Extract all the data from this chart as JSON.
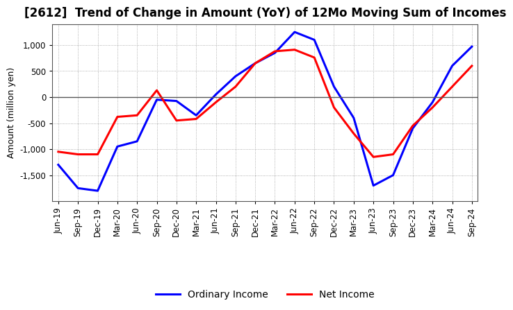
{
  "title": "[2612]  Trend of Change in Amount (YoY) of 12Mo Moving Sum of Incomes",
  "ylabel": "Amount (million yen)",
  "x_labels": [
    "Jun-19",
    "Sep-19",
    "Dec-19",
    "Mar-20",
    "Jun-20",
    "Sep-20",
    "Dec-20",
    "Mar-21",
    "Jun-21",
    "Sep-21",
    "Dec-21",
    "Mar-22",
    "Jun-22",
    "Sep-22",
    "Dec-22",
    "Mar-23",
    "Jun-23",
    "Sep-23",
    "Dec-23",
    "Mar-24",
    "Jun-24",
    "Sep-24"
  ],
  "ordinary_income": [
    -1300,
    -1750,
    -1800,
    -950,
    -850,
    -50,
    -75,
    -350,
    50,
    400,
    650,
    850,
    1250,
    1100,
    200,
    -400,
    -1700,
    -1500,
    -600,
    -100,
    600,
    970
  ],
  "net_income": [
    -1050,
    -1100,
    -1100,
    -380,
    -350,
    130,
    -450,
    -420,
    -100,
    200,
    650,
    880,
    910,
    760,
    -200,
    -700,
    -1150,
    -1100,
    -550,
    -200,
    200,
    600
  ],
  "ordinary_income_color": "#0000FF",
  "net_income_color": "#FF0000",
  "ylim": [
    -2000,
    1400
  ],
  "yticks": [
    -1500,
    -1000,
    -500,
    0,
    500,
    1000
  ],
  "background_color": "#FFFFFF",
  "plot_bg_color": "#FFFFFF",
  "grid_color": "#999999",
  "title_fontsize": 12,
  "axis_fontsize": 8.5,
  "legend_labels": [
    "Ordinary Income",
    "Net Income"
  ],
  "line_width": 2.2
}
